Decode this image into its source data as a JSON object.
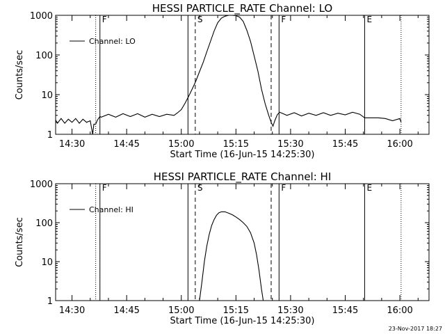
{
  "footer": {
    "timestamp": "23-Nov-2017 18:27"
  },
  "chart_data": [
    {
      "type": "line",
      "title": "HESSI PARTICLE_RATE Channel: LO",
      "xlabel": "Start Time (16-Jun-15 14:25:30)",
      "ylabel": "Counts/sec",
      "yscale": "log",
      "xlim": [
        "14:25:30",
        "16:08:00"
      ],
      "ylim": [
        1,
        1000
      ],
      "xticks": [
        "14:30",
        "14:45",
        "15:00",
        "15:15",
        "15:30",
        "15:45",
        "16:00"
      ],
      "yticks": [
        "1",
        "10",
        "100",
        "1000"
      ],
      "legend": {
        "position": "top-left",
        "entries": [
          "Channel: LO"
        ]
      },
      "grid": false,
      "markers": [
        {
          "time": "14:36:30",
          "style": "dotted",
          "label": ""
        },
        {
          "time": "14:37:40",
          "style": "solid",
          "label": "F"
        },
        {
          "time": "15:01:50",
          "style": "solid",
          "label": ""
        },
        {
          "time": "15:03:50",
          "style": "dashed",
          "label": "S"
        },
        {
          "time": "15:24:40",
          "style": "dashed",
          "label": ""
        },
        {
          "time": "15:26:50",
          "style": "solid",
          "label": "F"
        },
        {
          "time": "15:50:20",
          "style": "solid",
          "label": "E"
        },
        {
          "time": "16:00:20",
          "style": "dotted",
          "label": ""
        }
      ],
      "series": [
        {
          "name": "Channel: LO",
          "x": [
            "14:25:30",
            "14:26:00",
            "14:27:00",
            "14:28:00",
            "14:29:00",
            "14:30:00",
            "14:31:00",
            "14:32:00",
            "14:33:00",
            "14:34:00",
            "14:35:00",
            "14:35:40",
            "14:36:00",
            "14:36:30",
            "14:37:00",
            "14:37:40",
            "14:38:00",
            "14:40:00",
            "14:42:00",
            "14:44:00",
            "14:46:00",
            "14:48:00",
            "14:50:00",
            "14:52:00",
            "14:54:00",
            "14:56:00",
            "14:58:00",
            "14:59:00",
            "15:00:00",
            "15:01:00",
            "15:02:00",
            "15:03:00",
            "15:04:00",
            "15:05:00",
            "15:06:00",
            "15:07:00",
            "15:08:00",
            "15:09:00",
            "15:10:00",
            "15:11:00",
            "15:12:00",
            "15:13:00",
            "15:14:00",
            "15:15:00",
            "15:16:00",
            "15:17:00",
            "15:18:00",
            "15:19:00",
            "15:20:00",
            "15:21:00",
            "15:22:00",
            "15:23:00",
            "15:24:00",
            "15:24:40",
            "15:25:10",
            "15:25:40",
            "15:26:20",
            "15:27:00",
            "15:29:00",
            "15:31:00",
            "15:33:00",
            "15:35:00",
            "15:37:00",
            "15:39:00",
            "15:41:00",
            "15:43:00",
            "15:45:00",
            "15:47:00",
            "15:49:00",
            "15:50:20",
            "15:52:00",
            "15:54:00",
            "15:56:00",
            "15:58:00",
            "16:00:00",
            "16:00:20"
          ],
          "values": [
            2.3,
            1.9,
            2.5,
            1.9,
            2.4,
            2.0,
            2.5,
            1.9,
            2.4,
            2.0,
            2.2,
            1.0,
            1.8,
            1.8,
            2.3,
            2.8,
            2.7,
            3.2,
            2.7,
            3.3,
            2.8,
            3.3,
            2.7,
            3.2,
            2.8,
            3.2,
            3.0,
            3.5,
            4.2,
            6.0,
            9.0,
            14,
            22,
            38,
            65,
            120,
            220,
            400,
            650,
            850,
            950,
            1000,
            1000,
            980,
            900,
            700,
            420,
            220,
            95,
            40,
            14,
            6,
            3.0,
            2.0,
            1.6,
            2.2,
            3.1,
            3.6,
            3.0,
            3.5,
            2.9,
            3.4,
            3.0,
            3.5,
            3.0,
            3.4,
            3.1,
            3.6,
            3.2,
            2.6,
            2.6,
            2.6,
            2.5,
            2.2,
            2.5,
            2.0
          ]
        }
      ]
    },
    {
      "type": "line",
      "title": "HESSI PARTICLE_RATE Channel: HI",
      "xlabel": "Start Time (16-Jun-15 14:25:30)",
      "ylabel": "Counts/sec",
      "yscale": "log",
      "xlim": [
        "14:25:30",
        "16:08:00"
      ],
      "ylim": [
        1,
        1000
      ],
      "xticks": [
        "14:30",
        "14:45",
        "15:00",
        "15:15",
        "15:30",
        "15:45",
        "16:00"
      ],
      "yticks": [
        "1",
        "10",
        "100",
        "1000"
      ],
      "legend": {
        "position": "top-left",
        "entries": [
          "Channel: HI"
        ]
      },
      "grid": false,
      "markers": [
        {
          "time": "14:36:30",
          "style": "dotted",
          "label": ""
        },
        {
          "time": "14:37:40",
          "style": "solid",
          "label": "F"
        },
        {
          "time": "15:01:50",
          "style": "solid",
          "label": ""
        },
        {
          "time": "15:03:50",
          "style": "dashed",
          "label": "S"
        },
        {
          "time": "15:24:40",
          "style": "dashed",
          "label": ""
        },
        {
          "time": "15:26:50",
          "style": "solid",
          "label": "F"
        },
        {
          "time": "15:50:20",
          "style": "solid",
          "label": "E"
        },
        {
          "time": "16:00:20",
          "style": "dotted",
          "label": ""
        }
      ],
      "series": [
        {
          "name": "Channel: HI",
          "x": [
            "15:05:00",
            "15:05:40",
            "15:06:20",
            "15:07:00",
            "15:07:40",
            "15:08:20",
            "15:09:00",
            "15:09:40",
            "15:10:20",
            "15:11:00",
            "15:12:00",
            "15:13:00",
            "15:14:00",
            "15:15:00",
            "15:16:00",
            "15:17:00",
            "15:18:00",
            "15:19:00",
            "15:20:00",
            "15:20:40",
            "15:21:20",
            "15:22:00",
            "15:22:30"
          ],
          "values": [
            1.0,
            3.0,
            10,
            25,
            50,
            85,
            120,
            155,
            180,
            190,
            190,
            175,
            160,
            140,
            120,
            100,
            80,
            55,
            30,
            15,
            6,
            2,
            1.0
          ]
        }
      ]
    }
  ]
}
